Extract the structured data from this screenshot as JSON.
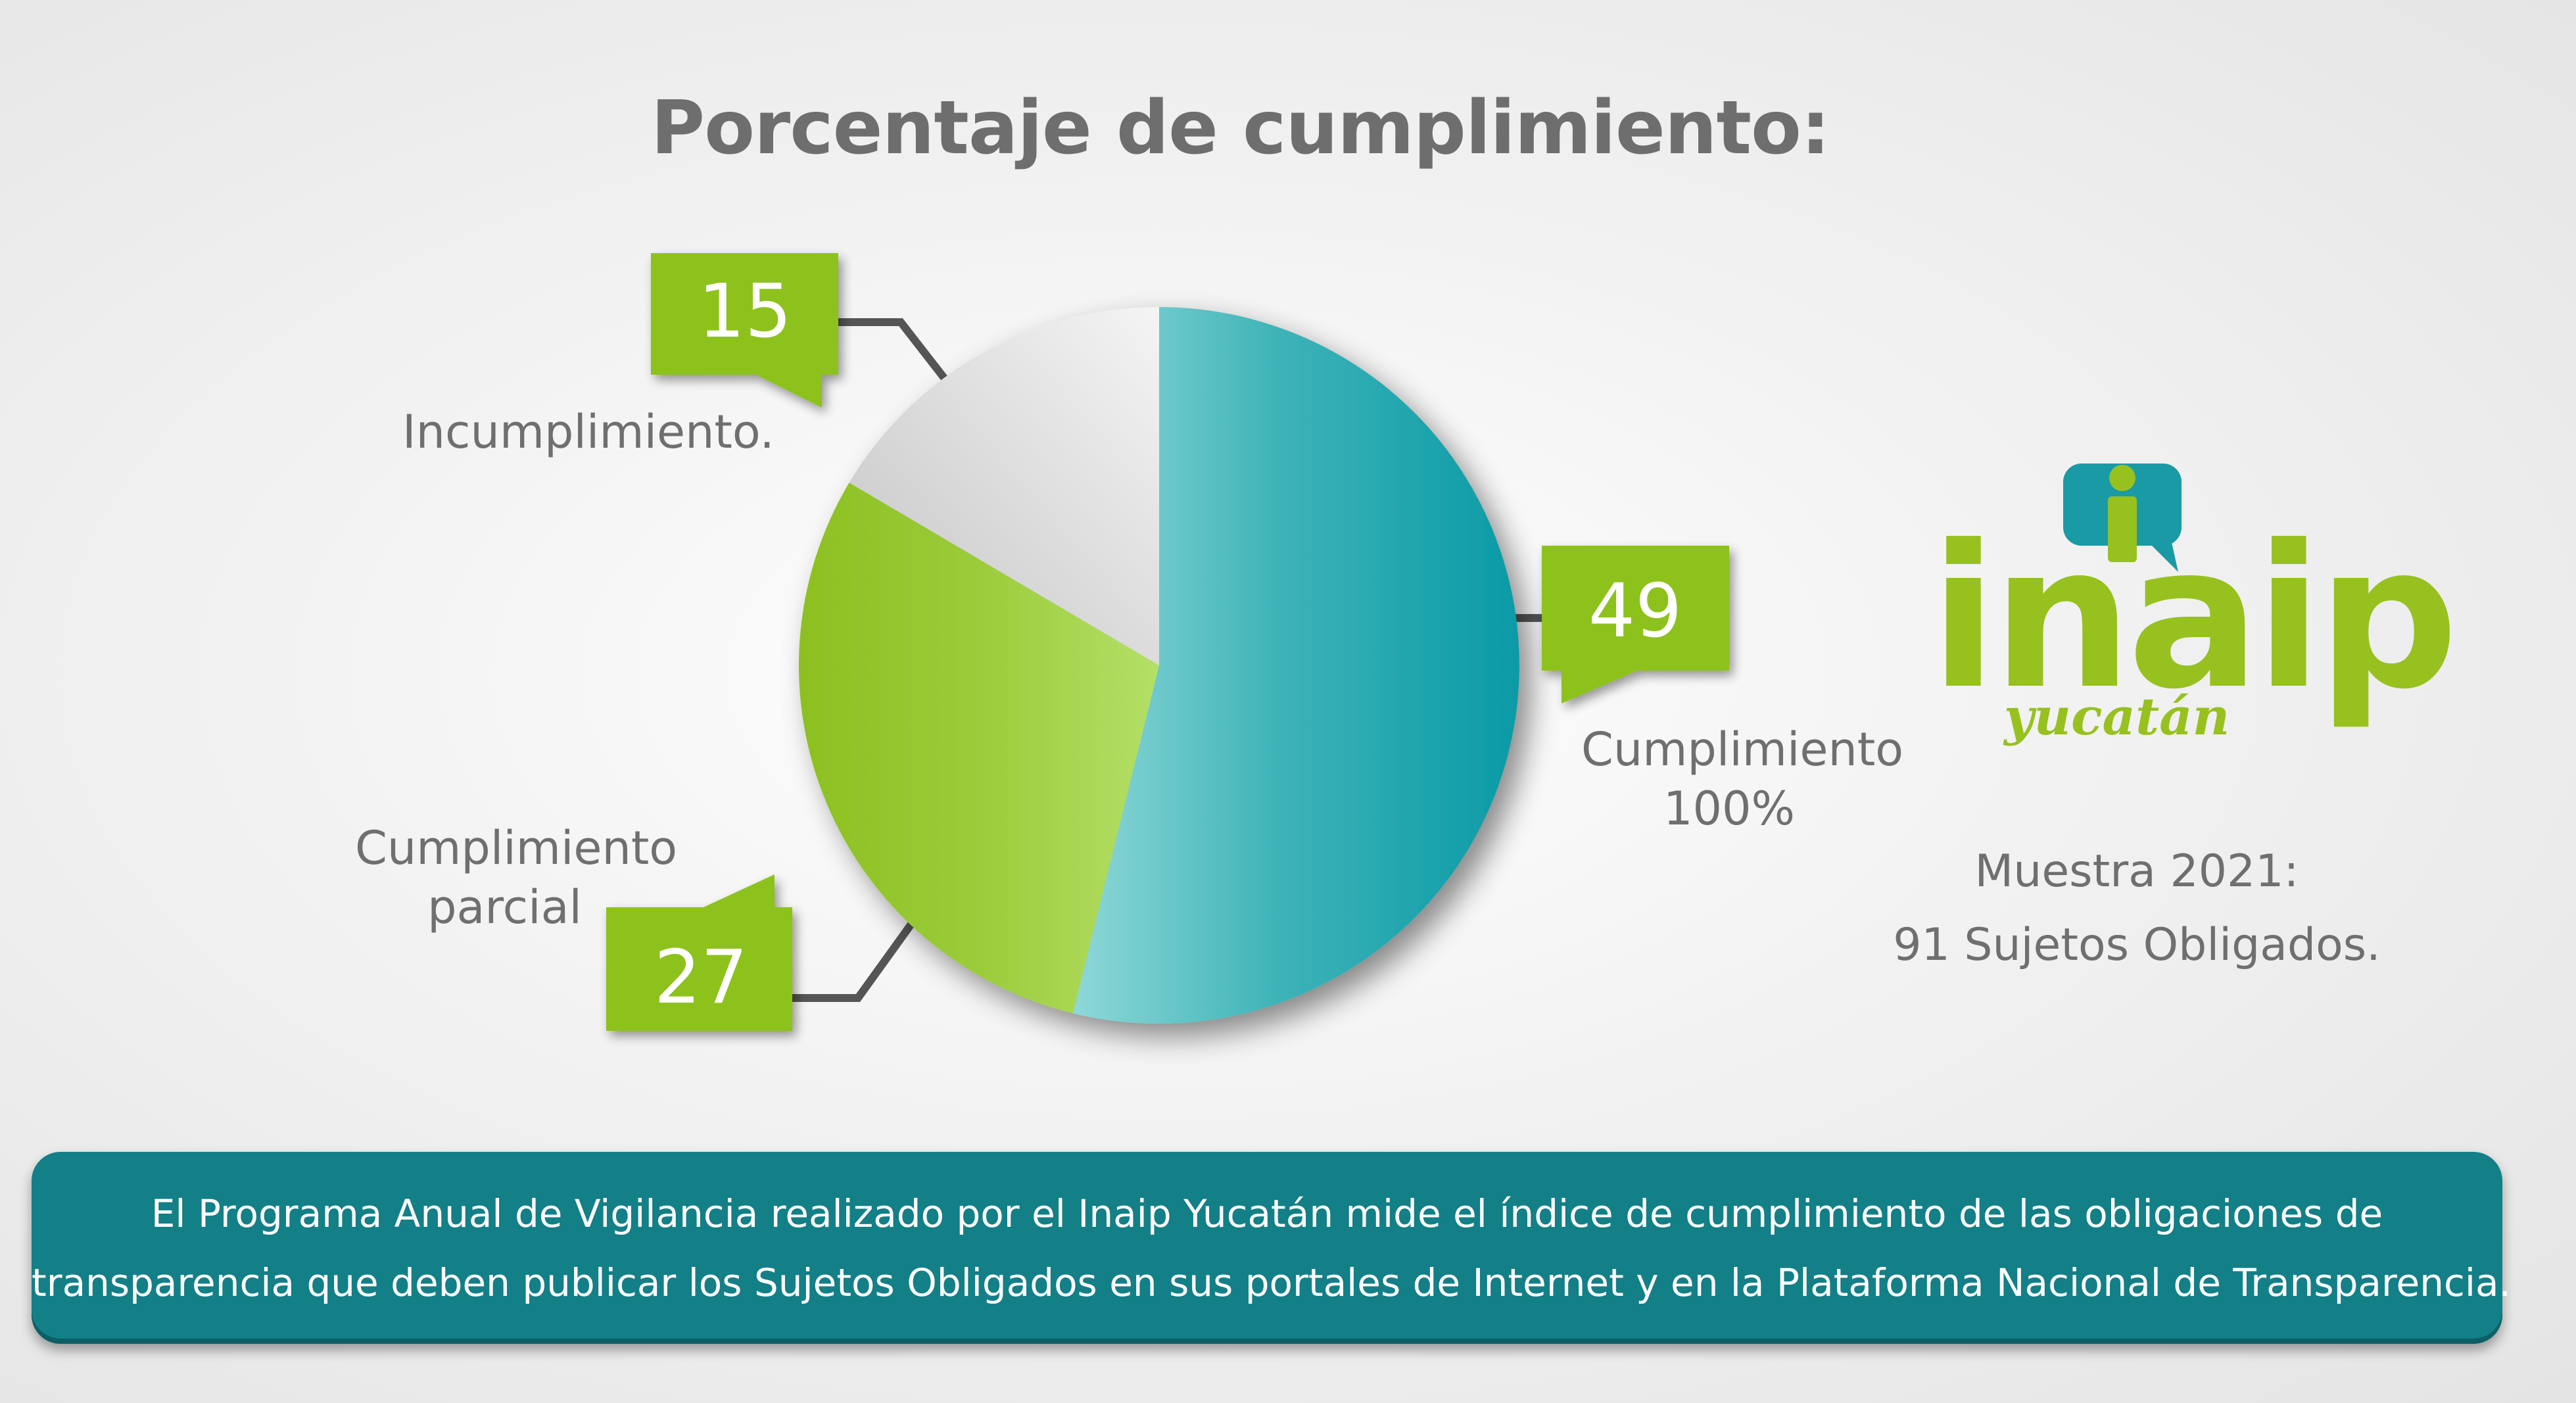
{
  "chart_data": {
    "type": "pie",
    "title": "Porcentaje de cumplimiento:",
    "slices": [
      {
        "label": "Cumplimiento 100%",
        "value": 49,
        "color": "#17a3ad"
      },
      {
        "label": "Cumplimiento parcial",
        "value": 27,
        "color": "#96c41f"
      },
      {
        "label": "Incumplimiento.",
        "value": 15,
        "color": "#c8c8c8"
      }
    ],
    "label_lines": {
      "cumplimiento": [
        "Cumplimiento",
        "100%"
      ],
      "parcial": [
        "Cumplimiento",
        "parcial"
      ],
      "incumplimiento": [
        "Incumplimiento."
      ]
    },
    "callout_color": "#8dc21f"
  },
  "logo": {
    "word": "inaip",
    "subtitle": "yucatán"
  },
  "sample": {
    "line1": "Muestra 2021:",
    "line2": "91 Sujetos Obligados."
  },
  "banner": {
    "line1": "El Programa Anual de  Vigilancia realizado por el Inaip Yucatán mide el índice de cumplimiento de las obligaciones de",
    "line2": "transparencia que deben publicar los Sujetos Obligados en sus portales de Internet y en la Plataforma Nacional de Transparencia."
  }
}
